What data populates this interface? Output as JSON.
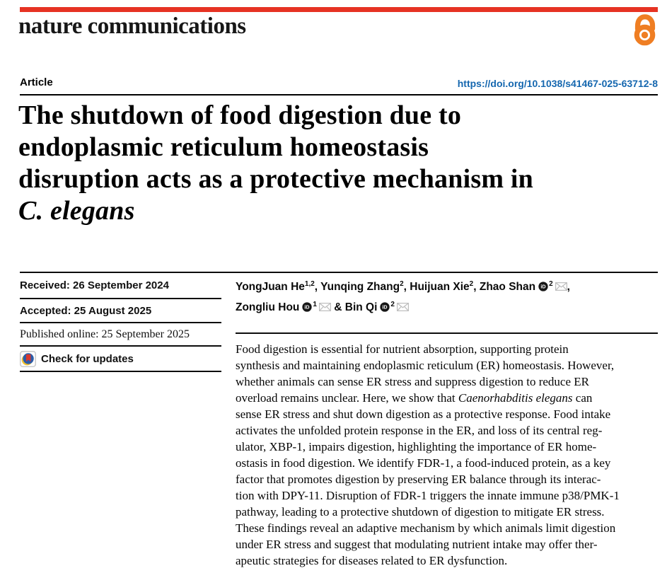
{
  "masthead": {
    "journal": "nature communications",
    "brand_red": "#e63323",
    "open_access_orange": "#ef7e23"
  },
  "header": {
    "article_label": "Article",
    "doi": "https://doi.org/10.1038/s41467-025-63712-8",
    "doi_color": "#1567af"
  },
  "title": {
    "lines": [
      "The shutdown of food digestion due to",
      "endoplasmic reticulum homeostasis",
      "disruption acts as a protective mechanism in"
    ],
    "italic_line": "C. elegans"
  },
  "meta": {
    "received": "Received: 26 September 2024",
    "accepted": "Accepted: 25 August 2025",
    "published": "Published online: 25 September 2025",
    "check_updates": "Check for updates"
  },
  "authors": {
    "lines": [
      [
        {
          "name": "YongJuan He",
          "sup": "1,2",
          "orcid": false,
          "email": false,
          "after": ", "
        },
        {
          "name": "Yunqing Zhang",
          "sup": "2",
          "orcid": false,
          "email": false,
          "after": ", "
        },
        {
          "name": "Huijuan Xie",
          "sup": "2",
          "orcid": false,
          "email": false,
          "after": ", "
        },
        {
          "name": "Zhao Shan",
          "sup": "2",
          "orcid": true,
          "email": true,
          "after": ","
        }
      ],
      [
        {
          "name": "Zongliu Hou",
          "sup": "1",
          "orcid": true,
          "email": true,
          "after": " & "
        },
        {
          "name": "Bin Qi",
          "sup": "2",
          "orcid": true,
          "email": true,
          "after": ""
        }
      ]
    ]
  },
  "abstract": {
    "lines": [
      "Food digestion is essential for nutrient absorption, supporting protein",
      "synthesis and maintaining endoplasmic reticulum (ER) homeostasis. However,",
      "whether animals can sense ER stress and suppress digestion to reduce ER",
      "overload remains unclear. Here, we show that *Caenorhabditis elegans* can",
      "sense ER stress and shut down digestion as a protective response. Food intake",
      "activates the unfolded protein response in the ER, and loss of its central reg-",
      "ulator, XBP-1, impairs digestion, highlighting the importance of ER home-",
      "ostasis in food digestion. We identify FDR-1, a food-induced protein, as a key",
      "factor that promotes digestion by preserving ER balance through its interac-",
      "tion with DPY-11. Disruption of FDR-1 triggers the innate immune p38/PMK-1",
      "pathway, leading to a protective shutdown of digestion to mitigate ER stress.",
      "These findings reveal an adaptive mechanism by which animals limit digestion",
      "under ER stress and suggest that modulating nutrient intake may offer ther-",
      "apeutic strategies for diseases related to ER dysfunction."
    ]
  }
}
